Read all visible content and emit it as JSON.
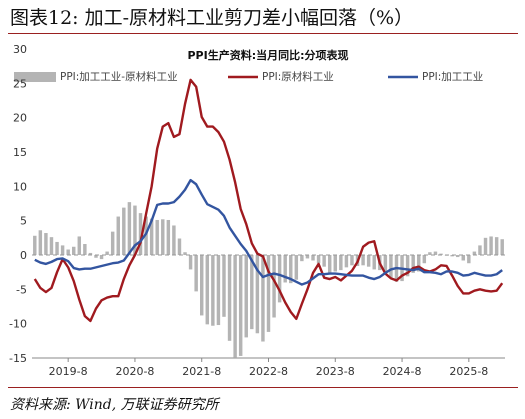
{
  "figure_title": "图表12:  加工-原材料工业剪刀差小幅回落（%）",
  "source": "资料来源: Wind, 万联证券研究所",
  "chart_data": {
    "type": "bar+line",
    "title": "PPI生产资料:当月同比:分项表现",
    "xlabel": "",
    "ylabel": "",
    "ylim": [
      -15,
      30
    ],
    "y_ticks": [
      -15,
      -10,
      -5,
      0,
      5,
      10,
      15,
      20,
      25,
      30
    ],
    "x_tick_labels": [
      "2019-8",
      "2020-8",
      "2021-8",
      "2022-8",
      "2023-8",
      "2024-8",
      "2025-8"
    ],
    "x_start": "2019-02",
    "x_end": "2025-09",
    "legend_position": "top",
    "grid": false,
    "colors": {
      "bar": "#b4b4b4",
      "raw": "#a01a1f",
      "proc": "#3355a0"
    },
    "series": [
      {
        "name": "PPI:加工工业-原材料工业",
        "type": "bar",
        "color": "#b4b4b4",
        "values": [
          2.8,
          3.6,
          3.2,
          2.6,
          1.9,
          1.4,
          0.8,
          1.2,
          2.7,
          1.6,
          0.3,
          -0.4,
          -0.6,
          0.5,
          3.4,
          5.6,
          6.9,
          7.7,
          7.2,
          6.1,
          5.6,
          5.3,
          5.1,
          5.2,
          5.1,
          4.3,
          2.4,
          0.4,
          -2.1,
          -5.3,
          -8.8,
          -10.1,
          -10.3,
          -10.2,
          -9.0,
          -12.5,
          -14.9,
          -14.7,
          -12.0,
          -10.8,
          -11.4,
          -12.6,
          -11.2,
          -9.1,
          -6.9,
          -4.0,
          -4.1,
          -3.6,
          -0.9,
          -0.5,
          -0.8,
          -1.2,
          -1.7,
          -2.6,
          -2.4,
          -2.2,
          -1.8,
          -1.5,
          -1.6,
          -1.5,
          -1.7,
          -2.1,
          -2.2,
          -2.4,
          -3.3,
          -3.9,
          -3.8,
          -3.1,
          -2.6,
          -2.4,
          -1.2,
          0.4,
          0.5,
          0.2,
          -0.1,
          -0.2,
          -0.3,
          -0.8,
          -1.2,
          0.5,
          1.4,
          2.5,
          2.7,
          2.6,
          2.3
        ]
      },
      {
        "name": "PPI:原材料工业",
        "type": "line",
        "color": "#a01a1f",
        "values": [
          -3.5,
          -4.8,
          -5.4,
          -4.8,
          -2.5,
          -0.6,
          -1.8,
          -3.8,
          -6.5,
          -8.9,
          -9.6,
          -7.8,
          -6.6,
          -6.2,
          -6.0,
          -6.0,
          -3.5,
          -1.5,
          0.0,
          1.8,
          6.0,
          10.0,
          15.5,
          18.7,
          19.2,
          17.2,
          17.6,
          22.0,
          25.5,
          24.5,
          20.1,
          18.7,
          18.7,
          17.9,
          16.5,
          13.9,
          10.6,
          6.7,
          4.5,
          1.7,
          0.2,
          -0.2,
          -2.4,
          -3.7,
          -5.2,
          -6.9,
          -8.3,
          -9.3,
          -7.1,
          -5.0,
          -2.6,
          -1.3,
          -3.3,
          -3.5,
          -3.2,
          -3.7,
          -3.0,
          -2.3,
          -1.0,
          1.2,
          1.8,
          2.0,
          -1.2,
          -2.7,
          -3.4,
          -3.7,
          -3.0,
          -2.6,
          -1.9,
          -1.7,
          -2.2,
          -2.4,
          -2.1,
          -1.5,
          -1.6,
          -3.0,
          -4.5,
          -5.6,
          -5.6,
          -5.2,
          -5.0,
          -5.2,
          -5.3,
          -5.2,
          -4.1
        ]
      },
      {
        "name": "PPI:加工工业",
        "type": "line",
        "color": "#3355a0",
        "values": [
          -0.7,
          -1.1,
          -1.3,
          -1.0,
          -0.6,
          -0.5,
          -0.9,
          -1.9,
          -2.1,
          -2.0,
          -2.0,
          -1.8,
          -1.6,
          -1.4,
          -1.2,
          -1.1,
          -0.8,
          0.3,
          1.4,
          2.0,
          3.1,
          5.0,
          7.3,
          7.5,
          7.5,
          7.7,
          8.5,
          9.5,
          10.9,
          10.3,
          8.8,
          7.4,
          7.0,
          6.6,
          5.7,
          4.0,
          2.8,
          1.6,
          0.6,
          -0.8,
          -2.2,
          -3.2,
          -2.9,
          -2.7,
          -2.9,
          -3.2,
          -3.5,
          -3.9,
          -4.3,
          -4.0,
          -3.4,
          -2.8,
          -2.8,
          -2.7,
          -2.7,
          -2.8,
          -2.9,
          -3.0,
          -3.0,
          -3.0,
          -3.3,
          -3.5,
          -3.2,
          -2.6,
          -2.1,
          -1.9,
          -2.0,
          -2.1,
          -2.2,
          -2.0,
          -2.5,
          -2.5,
          -2.6,
          -2.8,
          -2.4,
          -2.4,
          -2.6,
          -3.0,
          -2.9,
          -2.6,
          -2.8,
          -3.0,
          -3.0,
          -2.8,
          -2.2
        ]
      }
    ]
  }
}
